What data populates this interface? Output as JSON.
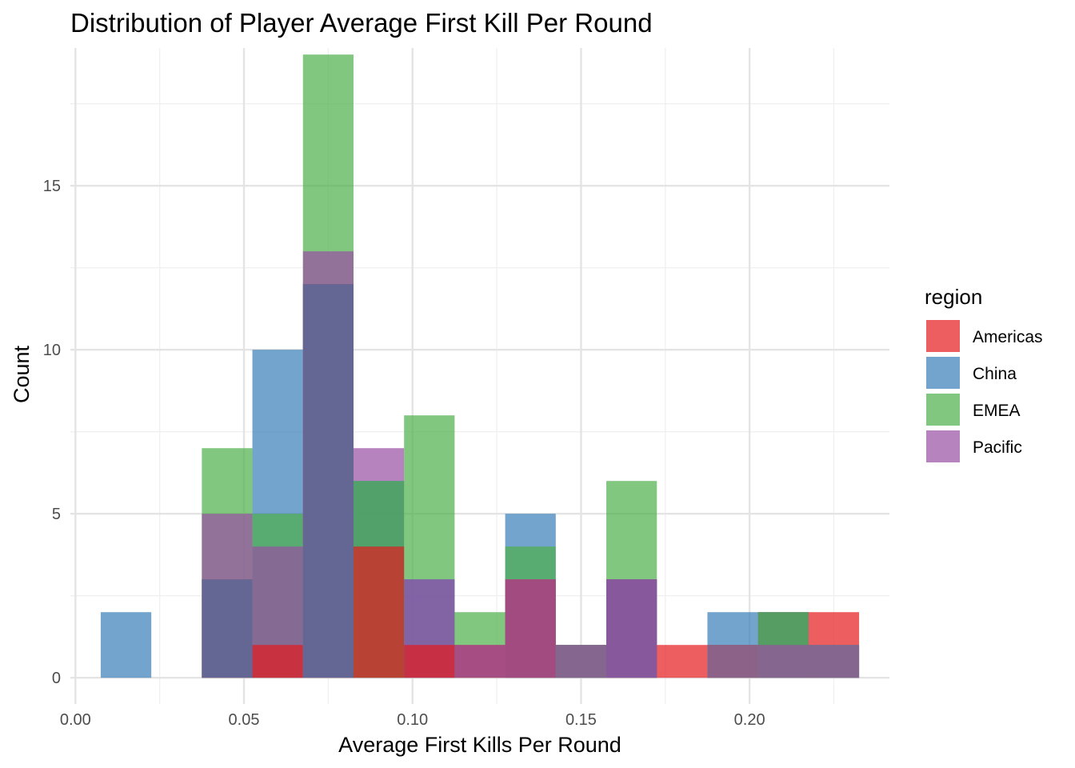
{
  "chart_data": {
    "type": "bar",
    "subtype": "overlapping-histogram",
    "title": "Distribution of Player Average First Kill Per Round",
    "xlabel": "Average First Kills Per Round",
    "ylabel": "Count",
    "xlim": [
      -0.0015,
      0.2415
    ],
    "ylim": [
      -0.8,
      19.2
    ],
    "x_ticks": [
      0.0,
      0.05,
      0.1,
      0.15,
      0.2
    ],
    "x_tick_labels": [
      "0.00",
      "0.05",
      "0.10",
      "0.15",
      "0.20"
    ],
    "y_ticks": [
      0,
      5,
      10,
      15
    ],
    "y_tick_labels": [
      "0",
      "5",
      "10",
      "15"
    ],
    "grid": true,
    "legend": {
      "title": "region",
      "position": "right"
    },
    "bin_edges": [
      0.0075,
      0.0225,
      0.0375,
      0.0525,
      0.0675,
      0.0825,
      0.0975,
      0.1125,
      0.1275,
      0.1425,
      0.1575,
      0.1725,
      0.1875,
      0.2025,
      0.2175,
      0.2325
    ],
    "series": [
      {
        "name": "Americas",
        "color": "#E41A1C",
        "values": [
          0,
          0,
          3,
          1,
          12,
          4,
          1,
          1,
          3,
          1,
          3,
          1,
          1,
          2,
          2
        ]
      },
      {
        "name": "China",
        "color": "#377EB8",
        "values": [
          2,
          0,
          3,
          10,
          12,
          6,
          3,
          0,
          5,
          1,
          3,
          0,
          2,
          2,
          1
        ]
      },
      {
        "name": "EMEA",
        "color": "#4DAF4A",
        "values": [
          0,
          0,
          7,
          5,
          19,
          6,
          8,
          2,
          4,
          1,
          6,
          0,
          1,
          2,
          1
        ]
      },
      {
        "name": "Pacific",
        "color": "#984EA3",
        "values": [
          0,
          0,
          5,
          4,
          13,
          7,
          3,
          1,
          3,
          1,
          3,
          0,
          1,
          1,
          1
        ]
      }
    ]
  }
}
